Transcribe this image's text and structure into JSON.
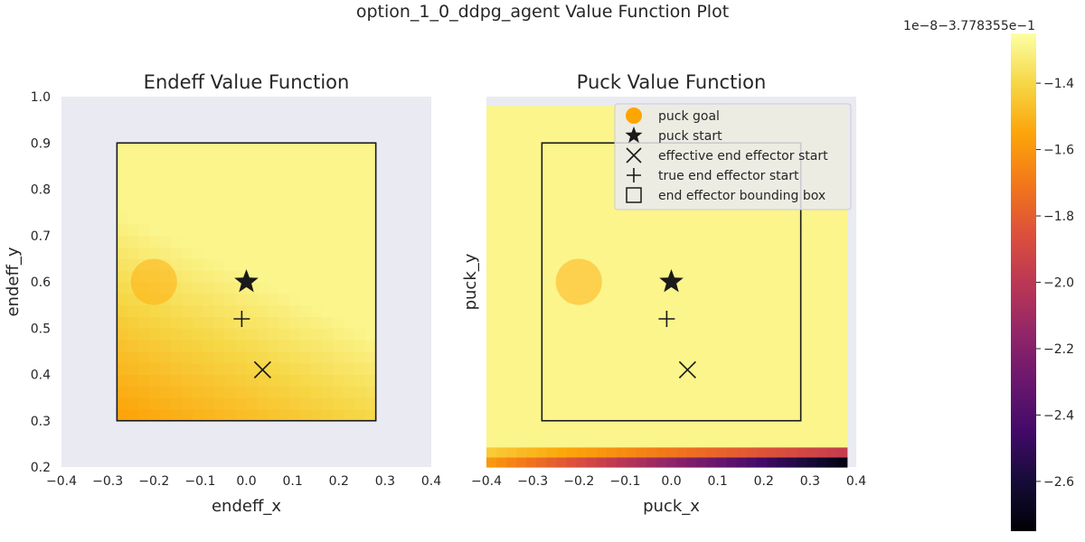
{
  "title": "option_1_0_ddpg_agent Value Function Plot",
  "colormap": {
    "name": "inferno",
    "offset_label": "1e−8−3.778355e−1",
    "vmin": -2.75,
    "vmax": -1.25,
    "ticks": [
      -1.4,
      -1.6,
      -1.8,
      -2.0,
      -2.2,
      -2.4,
      -2.6
    ],
    "tick_labels": [
      "−1.4",
      "−1.6",
      "−1.8",
      "−2.0",
      "−2.2",
      "−2.4",
      "−2.6"
    ]
  },
  "chart_data": [
    {
      "type": "heatmap",
      "title": "Endeff Value Function",
      "xlabel": "endeff_x",
      "ylabel": "endeff_y",
      "xlim": [
        -0.4,
        0.4
      ],
      "ylim": [
        0.2,
        1.0
      ],
      "xticks": [
        -0.4,
        -0.3,
        -0.2,
        -0.1,
        0.0,
        0.1,
        0.2,
        0.3,
        0.4
      ],
      "xtick_labels": [
        "−0.4",
        "−0.3",
        "−0.2",
        "−0.1",
        "0.0",
        "0.1",
        "0.2",
        "0.3",
        "0.4"
      ],
      "yticks": [
        0.2,
        0.3,
        0.4,
        0.5,
        0.6,
        0.7,
        0.8,
        0.9,
        1.0
      ],
      "ytick_labels": [
        "0.2",
        "0.3",
        "0.4",
        "0.5",
        "0.6",
        "0.7",
        "0.8",
        "0.9",
        "1.0"
      ],
      "heatmap_extent": {
        "x": [
          -0.28,
          0.28
        ],
        "y": [
          0.3,
          0.9
        ]
      },
      "grid": {
        "cols": 24,
        "rows": 24
      },
      "field": "endeff",
      "bounding_box": {
        "x": [
          -0.28,
          0.28
        ],
        "y": [
          0.3,
          0.9
        ]
      },
      "puck_goal": {
        "x": -0.2,
        "y": 0.6,
        "radius": 0.05
      },
      "puck_start": {
        "x": 0.0,
        "y": 0.6
      },
      "effective_end_effector_start": {
        "x": 0.035,
        "y": 0.41
      },
      "true_end_effector_start": {
        "x": -0.01,
        "y": 0.52
      }
    },
    {
      "type": "heatmap",
      "title": "Puck Value Function",
      "xlabel": "puck_x",
      "ylabel": "puck_y",
      "xlim": [
        -0.4,
        0.4
      ],
      "ylim": [
        0.2,
        1.0
      ],
      "xticks": [
        -0.4,
        -0.3,
        -0.2,
        -0.1,
        0.0,
        0.1,
        0.2,
        0.3,
        0.4
      ],
      "xtick_labels": [
        "−0.4",
        "−0.3",
        "−0.2",
        "−0.1",
        "0.0",
        "0.1",
        "0.2",
        "0.3",
        "0.4"
      ],
      "heatmap_extent": {
        "x": [
          -0.4,
          0.38
        ],
        "y": [
          0.2,
          0.98
        ]
      },
      "grid": {
        "cols": 36,
        "rows": 36
      },
      "field": "puck",
      "bounding_box": {
        "x": [
          -0.28,
          0.28
        ],
        "y": [
          0.3,
          0.9
        ]
      },
      "puck_goal": {
        "x": -0.2,
        "y": 0.6,
        "radius": 0.05
      },
      "puck_start": {
        "x": 0.0,
        "y": 0.6
      },
      "effective_end_effector_start": {
        "x": 0.035,
        "y": 0.41
      },
      "true_end_effector_start": {
        "x": -0.01,
        "y": 0.52
      }
    }
  ],
  "legend": {
    "placement": "upper-right",
    "entries": [
      {
        "label": "puck goal",
        "marker": "circle-icon",
        "color": "#ffa500"
      },
      {
        "label": "puck start",
        "marker": "star-icon",
        "color": "#1a1a1a"
      },
      {
        "label": "effective end effector start",
        "marker": "x-icon",
        "color": "#1a1a1a"
      },
      {
        "label": "true end effector start",
        "marker": "plus-icon",
        "color": "#1a1a1a"
      },
      {
        "label": "end effector bounding box",
        "marker": "square-icon",
        "color": "#1a1a1a"
      }
    ]
  },
  "colors": {
    "axes_bg": "#eaeaf2",
    "goal": "#ffa500",
    "marker": "#1a1a1a"
  }
}
